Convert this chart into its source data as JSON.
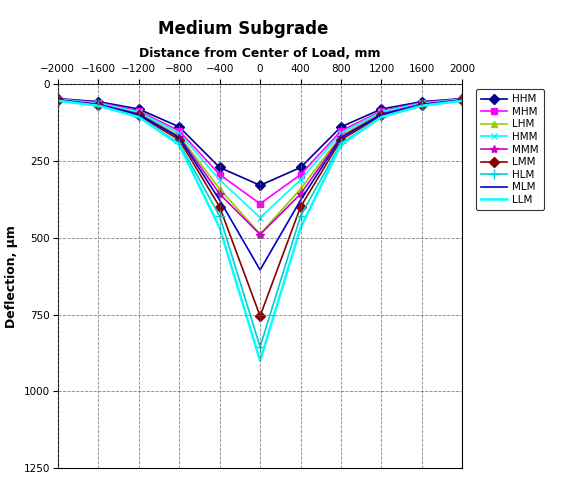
{
  "title": "Medium Subgrade",
  "xlabel": "Distance from Center of Load, mm",
  "ylabel": "Deflection, μm",
  "x_positions": [
    -2000,
    -1600,
    -1200,
    -800,
    -400,
    0,
    400,
    800,
    1200,
    1600,
    2000
  ],
  "xlim": [
    -2000,
    2000
  ],
  "ylim": [
    -1250,
    0
  ],
  "yticks": [
    0,
    -250,
    -500,
    -750,
    -1000,
    -1250
  ],
  "xticks": [
    -2000,
    -1600,
    -1200,
    -800,
    -400,
    0,
    400,
    800,
    1200,
    1600,
    2000
  ],
  "series": [
    {
      "name": "HHM",
      "color": "#00008B",
      "marker": "D",
      "ms": 5,
      "lw": 1.2,
      "values": [
        -48,
        -58,
        -82,
        -140,
        -272,
        -330,
        -272,
        -140,
        -82,
        -58,
        -48
      ]
    },
    {
      "name": "MHM",
      "color": "#FF00FF",
      "marker": "s",
      "ms": 5,
      "lw": 1.2,
      "values": [
        -49,
        -61,
        -88,
        -153,
        -295,
        -390,
        -295,
        -153,
        -88,
        -61,
        -49
      ]
    },
    {
      "name": "LHM",
      "color": "#99CC00",
      "marker": "^",
      "ms": 5,
      "lw": 1.2,
      "values": [
        -51,
        -65,
        -95,
        -168,
        -342,
        -488,
        -342,
        -168,
        -95,
        -65,
        -51
      ]
    },
    {
      "name": "HMM",
      "color": "#00FFFF",
      "marker": "x",
      "ms": 5,
      "lw": 1.2,
      "values": [
        -50,
        -63,
        -91,
        -160,
        -312,
        -435,
        -312,
        -160,
        -91,
        -63,
        -50
      ]
    },
    {
      "name": "MMM",
      "color": "#CC00CC",
      "marker": "*",
      "ms": 6,
      "lw": 1.2,
      "values": [
        -52,
        -66,
        -98,
        -173,
        -358,
        -490,
        -358,
        -173,
        -98,
        -66,
        -52
      ]
    },
    {
      "name": "LMM",
      "color": "#8B0000",
      "marker": "D",
      "ms": 5,
      "lw": 1.2,
      "values": [
        -53,
        -68,
        -103,
        -182,
        -400,
        -755,
        -400,
        -182,
        -103,
        -68,
        -53
      ]
    },
    {
      "name": "HLM",
      "color": "#00CED1",
      "marker": "+",
      "ms": 7,
      "lw": 1.2,
      "values": [
        -55,
        -71,
        -108,
        -193,
        -430,
        -855,
        -430,
        -193,
        -108,
        -71,
        -55
      ]
    },
    {
      "name": "MLM",
      "color": "#0000CD",
      "marker": "None",
      "ms": 5,
      "lw": 1.2,
      "values": [
        -53,
        -68,
        -100,
        -175,
        -378,
        -605,
        -378,
        -175,
        -100,
        -68,
        -53
      ]
    },
    {
      "name": "LLM",
      "color": "#00FFFF",
      "marker": "None",
      "ms": 5,
      "lw": 1.8,
      "values": [
        -55,
        -71,
        -108,
        -198,
        -468,
        -900,
        -468,
        -198,
        -108,
        -71,
        -55
      ]
    }
  ]
}
